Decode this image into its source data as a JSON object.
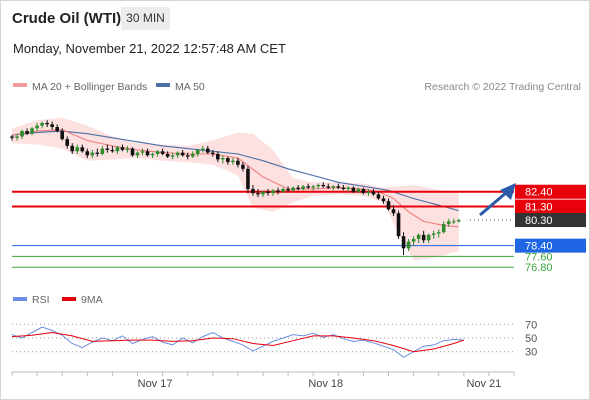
{
  "header": {
    "title": "Crude Oil (WTI)",
    "timeframe": "30 MIN",
    "datetime": "Monday, November 21, 2022 12:57:48 AM CET"
  },
  "legend": {
    "ma20": "MA 20 + Bollinger Bands",
    "ma50": "MA 50",
    "credit": "Research © 2022 Trading Central",
    "rsi": "RSI",
    "rsi_ma": "9MA"
  },
  "colors": {
    "bollinger_fill": "#fcd3d3",
    "ma20": "#f08080",
    "ma50": "#4a6fa5",
    "resistance": "#e8000b",
    "support_blue": "#1f66e5",
    "support_green": "#3aa53a",
    "last_price": "#333333",
    "arrow": "#2a5aa8",
    "candle_up": "#2e8b2e",
    "candle_down": "#111111",
    "rsi": "#6a8fe0",
    "rsi_ma": "#e8000b"
  },
  "chart_data": {
    "type": "candlestick",
    "price_levels": [
      {
        "label": "82.40",
        "value": 82.4,
        "kind": "resistance"
      },
      {
        "label": "81.30",
        "value": 81.3,
        "kind": "resistance"
      },
      {
        "label": "80.30",
        "value": 80.3,
        "kind": "last_price"
      },
      {
        "label": "78.40",
        "value": 78.4,
        "kind": "pivot"
      },
      {
        "label": "77.60",
        "value": 77.6,
        "kind": "support"
      },
      {
        "label": "76.80",
        "value": 76.8,
        "kind": "support"
      }
    ],
    "price_range": [
      76.0,
      89.5
    ],
    "x_labels": [
      "Nov 17",
      "Nov 18",
      "Nov 21"
    ],
    "x_label_positions": [
      0.285,
      0.625,
      0.94
    ],
    "candles": [
      [
        0.0,
        86.5,
        86.6,
        86.2,
        86.4
      ],
      [
        0.01,
        86.4,
        86.7,
        86.2,
        86.5
      ],
      [
        0.02,
        86.5,
        87.0,
        86.3,
        86.9
      ],
      [
        0.03,
        86.9,
        87.1,
        86.6,
        86.7
      ],
      [
        0.04,
        86.7,
        87.2,
        86.6,
        87.1
      ],
      [
        0.05,
        87.1,
        87.5,
        86.9,
        87.3
      ],
      [
        0.06,
        87.3,
        87.6,
        87.1,
        87.5
      ],
      [
        0.07,
        87.5,
        87.7,
        87.2,
        87.4
      ],
      [
        0.08,
        87.4,
        87.6,
        87.0,
        87.2
      ],
      [
        0.09,
        87.2,
        87.4,
        86.8,
        86.9
      ],
      [
        0.1,
        86.9,
        87.1,
        86.2,
        86.3
      ],
      [
        0.11,
        86.3,
        86.5,
        85.6,
        85.8
      ],
      [
        0.12,
        85.8,
        86.0,
        85.2,
        85.4
      ],
      [
        0.13,
        85.4,
        85.9,
        85.2,
        85.7
      ],
      [
        0.14,
        85.7,
        85.9,
        85.3,
        85.4
      ],
      [
        0.15,
        85.4,
        85.6,
        84.9,
        85.1
      ],
      [
        0.16,
        85.1,
        85.5,
        84.9,
        85.3
      ],
      [
        0.17,
        85.3,
        85.6,
        85.0,
        85.2
      ],
      [
        0.18,
        85.2,
        85.8,
        85.1,
        85.6
      ],
      [
        0.19,
        85.6,
        85.9,
        85.3,
        85.5
      ],
      [
        0.2,
        85.5,
        85.8,
        85.3,
        85.4
      ],
      [
        0.21,
        85.4,
        85.8,
        85.2,
        85.7
      ],
      [
        0.22,
        85.7,
        85.9,
        85.4,
        85.5
      ],
      [
        0.23,
        85.5,
        85.8,
        85.3,
        85.6
      ],
      [
        0.24,
        85.6,
        85.7,
        85.0,
        85.1
      ],
      [
        0.25,
        85.1,
        85.4,
        84.9,
        85.3
      ],
      [
        0.26,
        85.3,
        85.6,
        85.1,
        85.4
      ],
      [
        0.27,
        85.4,
        85.6,
        85.0,
        85.1
      ],
      [
        0.28,
        85.1,
        85.3,
        84.9,
        85.2
      ],
      [
        0.29,
        85.2,
        85.5,
        85.0,
        85.4
      ],
      [
        0.3,
        85.4,
        85.6,
        85.1,
        85.2
      ],
      [
        0.31,
        85.2,
        85.4,
        84.9,
        85.0
      ],
      [
        0.32,
        85.0,
        85.3,
        84.8,
        85.1
      ],
      [
        0.33,
        85.1,
        85.4,
        84.9,
        85.3
      ],
      [
        0.34,
        85.3,
        85.5,
        85.0,
        85.1
      ],
      [
        0.35,
        85.1,
        85.3,
        84.8,
        85.0
      ],
      [
        0.36,
        85.0,
        85.4,
        84.9,
        85.2
      ],
      [
        0.37,
        85.2,
        85.6,
        85.0,
        85.5
      ],
      [
        0.38,
        85.5,
        85.8,
        85.3,
        85.6
      ],
      [
        0.39,
        85.6,
        85.8,
        85.2,
        85.3
      ],
      [
        0.4,
        85.3,
        85.5,
        85.0,
        85.2
      ],
      [
        0.41,
        85.2,
        85.4,
        84.6,
        84.8
      ],
      [
        0.42,
        84.8,
        85.1,
        84.5,
        84.9
      ],
      [
        0.43,
        84.9,
        85.0,
        84.4,
        84.6
      ],
      [
        0.44,
        84.6,
        84.9,
        84.4,
        84.7
      ],
      [
        0.45,
        84.7,
        84.9,
        84.2,
        84.4
      ],
      [
        0.46,
        84.4,
        84.6,
        83.9,
        84.1
      ],
      [
        0.47,
        84.1,
        84.3,
        82.3,
        82.6
      ],
      [
        0.48,
        82.6,
        82.9,
        82.1,
        82.3
      ],
      [
        0.49,
        82.3,
        82.6,
        82.0,
        82.2
      ],
      [
        0.5,
        82.2,
        82.5,
        82.0,
        82.4
      ],
      [
        0.51,
        82.4,
        82.6,
        82.1,
        82.3
      ],
      [
        0.52,
        82.3,
        82.6,
        82.1,
        82.5
      ],
      [
        0.53,
        82.5,
        82.7,
        82.2,
        82.4
      ],
      [
        0.54,
        82.4,
        82.7,
        82.3,
        82.6
      ],
      [
        0.55,
        82.6,
        82.8,
        82.4,
        82.5
      ],
      [
        0.56,
        82.5,
        82.8,
        82.4,
        82.7
      ],
      [
        0.57,
        82.7,
        82.9,
        82.5,
        82.6
      ],
      [
        0.58,
        82.6,
        82.9,
        82.5,
        82.8
      ],
      [
        0.59,
        82.8,
        83.0,
        82.6,
        82.7
      ],
      [
        0.6,
        82.7,
        82.9,
        82.5,
        82.8
      ],
      [
        0.61,
        82.8,
        83.0,
        82.6,
        82.9
      ],
      [
        0.62,
        82.9,
        83.1,
        82.7,
        82.8
      ],
      [
        0.63,
        82.8,
        83.0,
        82.6,
        82.7
      ],
      [
        0.64,
        82.7,
        82.9,
        82.5,
        82.8
      ],
      [
        0.65,
        82.8,
        83.0,
        82.6,
        82.7
      ],
      [
        0.66,
        82.7,
        82.9,
        82.5,
        82.6
      ],
      [
        0.67,
        82.6,
        82.8,
        82.4,
        82.7
      ],
      [
        0.68,
        82.7,
        82.8,
        82.3,
        82.4
      ],
      [
        0.69,
        82.4,
        82.7,
        82.3,
        82.6
      ],
      [
        0.7,
        82.6,
        82.7,
        82.2,
        82.3
      ],
      [
        0.71,
        82.3,
        82.6,
        82.1,
        82.4
      ],
      [
        0.72,
        82.4,
        82.6,
        82.1,
        82.2
      ],
      [
        0.73,
        82.2,
        82.4,
        81.8,
        81.9
      ],
      [
        0.74,
        81.9,
        82.1,
        81.5,
        81.7
      ],
      [
        0.75,
        81.7,
        81.9,
        81.0,
        81.1
      ],
      [
        0.76,
        81.1,
        81.4,
        80.6,
        80.8
      ],
      [
        0.77,
        80.8,
        81.0,
        78.9,
        79.1
      ],
      [
        0.78,
        79.1,
        79.4,
        77.7,
        78.2
      ],
      [
        0.79,
        78.2,
        78.9,
        78.0,
        78.7
      ],
      [
        0.8,
        78.7,
        79.1,
        78.4,
        78.9
      ],
      [
        0.81,
        78.9,
        79.3,
        78.6,
        79.2
      ],
      [
        0.82,
        79.2,
        79.5,
        78.6,
        78.8
      ],
      [
        0.83,
        78.8,
        79.3,
        78.6,
        79.2
      ],
      [
        0.84,
        79.2,
        79.5,
        78.9,
        79.3
      ],
      [
        0.85,
        79.3,
        79.6,
        79.0,
        79.4
      ],
      [
        0.86,
        79.4,
        80.2,
        79.3,
        80.0
      ],
      [
        0.87,
        80.0,
        80.4,
        79.8,
        80.2
      ],
      [
        0.88,
        80.2,
        80.4,
        80.0,
        80.2
      ],
      [
        0.89,
        80.2,
        80.4,
        80.1,
        80.3
      ]
    ],
    "ma20": [
      [
        0.0,
        86.6
      ],
      [
        0.05,
        86.9
      ],
      [
        0.1,
        87.0
      ],
      [
        0.15,
        86.2
      ],
      [
        0.2,
        85.8
      ],
      [
        0.25,
        85.5
      ],
      [
        0.3,
        85.3
      ],
      [
        0.35,
        85.2
      ],
      [
        0.4,
        85.2
      ],
      [
        0.45,
        84.9
      ],
      [
        0.5,
        83.5
      ],
      [
        0.55,
        82.6
      ],
      [
        0.6,
        82.6
      ],
      [
        0.65,
        82.7
      ],
      [
        0.7,
        82.6
      ],
      [
        0.73,
        82.4
      ],
      [
        0.76,
        81.9
      ],
      [
        0.79,
        80.9
      ],
      [
        0.82,
        80.2
      ],
      [
        0.86,
        79.9
      ],
      [
        0.89,
        79.8
      ]
    ],
    "ma50": [
      [
        0.0,
        86.6
      ],
      [
        0.05,
        86.8
      ],
      [
        0.1,
        86.9
      ],
      [
        0.15,
        86.7
      ],
      [
        0.2,
        86.4
      ],
      [
        0.25,
        86.1
      ],
      [
        0.3,
        85.8
      ],
      [
        0.35,
        85.6
      ],
      [
        0.4,
        85.4
      ],
      [
        0.45,
        85.2
      ],
      [
        0.5,
        84.7
      ],
      [
        0.55,
        84.1
      ],
      [
        0.6,
        83.6
      ],
      [
        0.65,
        83.1
      ],
      [
        0.7,
        82.8
      ],
      [
        0.75,
        82.5
      ],
      [
        0.8,
        81.9
      ],
      [
        0.85,
        81.4
      ],
      [
        0.89,
        81.0
      ]
    ],
    "bb_upper": [
      [
        0.0,
        87.1
      ],
      [
        0.05,
        87.7
      ],
      [
        0.1,
        87.9
      ],
      [
        0.15,
        87.3
      ],
      [
        0.2,
        86.5
      ],
      [
        0.25,
        86.0
      ],
      [
        0.3,
        85.9
      ],
      [
        0.35,
        85.8
      ],
      [
        0.4,
        86.2
      ],
      [
        0.45,
        86.8
      ],
      [
        0.48,
        86.7
      ],
      [
        0.52,
        85.5
      ],
      [
        0.56,
        83.4
      ],
      [
        0.6,
        83.1
      ],
      [
        0.65,
        83.1
      ],
      [
        0.7,
        83.0
      ],
      [
        0.74,
        82.7
      ],
      [
        0.77,
        82.8
      ],
      [
        0.8,
        82.9
      ],
      [
        0.84,
        82.6
      ],
      [
        0.89,
        82.3
      ]
    ],
    "bb_lower": [
      [
        0.0,
        86.0
      ],
      [
        0.05,
        85.9
      ],
      [
        0.1,
        85.6
      ],
      [
        0.15,
        84.7
      ],
      [
        0.2,
        84.8
      ],
      [
        0.25,
        84.9
      ],
      [
        0.3,
        84.7
      ],
      [
        0.35,
        84.6
      ],
      [
        0.4,
        84.4
      ],
      [
        0.45,
        83.6
      ],
      [
        0.48,
        81.2
      ],
      [
        0.52,
        80.9
      ],
      [
        0.56,
        81.6
      ],
      [
        0.6,
        82.1
      ],
      [
        0.65,
        82.2
      ],
      [
        0.7,
        82.1
      ],
      [
        0.74,
        81.6
      ],
      [
        0.77,
        79.3
      ],
      [
        0.8,
        77.3
      ],
      [
        0.84,
        77.5
      ],
      [
        0.89,
        78.0
      ]
    ],
    "rsi": {
      "levels": [
        70,
        50,
        30
      ],
      "range": [
        15,
        85
      ],
      "rsi": [
        [
          0.0,
          55
        ],
        [
          0.02,
          50
        ],
        [
          0.04,
          58
        ],
        [
          0.06,
          66
        ],
        [
          0.08,
          61
        ],
        [
          0.1,
          54
        ],
        [
          0.12,
          42
        ],
        [
          0.14,
          36
        ],
        [
          0.16,
          44
        ],
        [
          0.18,
          50
        ],
        [
          0.2,
          46
        ],
        [
          0.22,
          53
        ],
        [
          0.24,
          42
        ],
        [
          0.26,
          48
        ],
        [
          0.28,
          52
        ],
        [
          0.3,
          44
        ],
        [
          0.32,
          40
        ],
        [
          0.34,
          50
        ],
        [
          0.36,
          43
        ],
        [
          0.38,
          52
        ],
        [
          0.4,
          58
        ],
        [
          0.42,
          50
        ],
        [
          0.44,
          45
        ],
        [
          0.46,
          40
        ],
        [
          0.48,
          31
        ],
        [
          0.5,
          38
        ],
        [
          0.52,
          45
        ],
        [
          0.54,
          50
        ],
        [
          0.56,
          55
        ],
        [
          0.58,
          53
        ],
        [
          0.6,
          57
        ],
        [
          0.62,
          51
        ],
        [
          0.64,
          55
        ],
        [
          0.66,
          49
        ],
        [
          0.68,
          45
        ],
        [
          0.7,
          47
        ],
        [
          0.72,
          43
        ],
        [
          0.74,
          38
        ],
        [
          0.76,
          33
        ],
        [
          0.78,
          22
        ],
        [
          0.8,
          30
        ],
        [
          0.82,
          38
        ],
        [
          0.84,
          40
        ],
        [
          0.86,
          46
        ],
        [
          0.88,
          48
        ],
        [
          0.9,
          47
        ]
      ],
      "ma": [
        [
          0.0,
          52
        ],
        [
          0.04,
          54
        ],
        [
          0.08,
          58
        ],
        [
          0.12,
          53
        ],
        [
          0.16,
          45
        ],
        [
          0.2,
          46
        ],
        [
          0.24,
          47
        ],
        [
          0.28,
          47
        ],
        [
          0.32,
          45
        ],
        [
          0.36,
          46
        ],
        [
          0.4,
          50
        ],
        [
          0.44,
          49
        ],
        [
          0.48,
          42
        ],
        [
          0.52,
          39
        ],
        [
          0.56,
          46
        ],
        [
          0.6,
          53
        ],
        [
          0.64,
          53
        ],
        [
          0.68,
          50
        ],
        [
          0.72,
          46
        ],
        [
          0.76,
          39
        ],
        [
          0.8,
          30
        ],
        [
          0.84,
          34
        ],
        [
          0.88,
          42
        ],
        [
          0.9,
          47
        ]
      ]
    }
  }
}
